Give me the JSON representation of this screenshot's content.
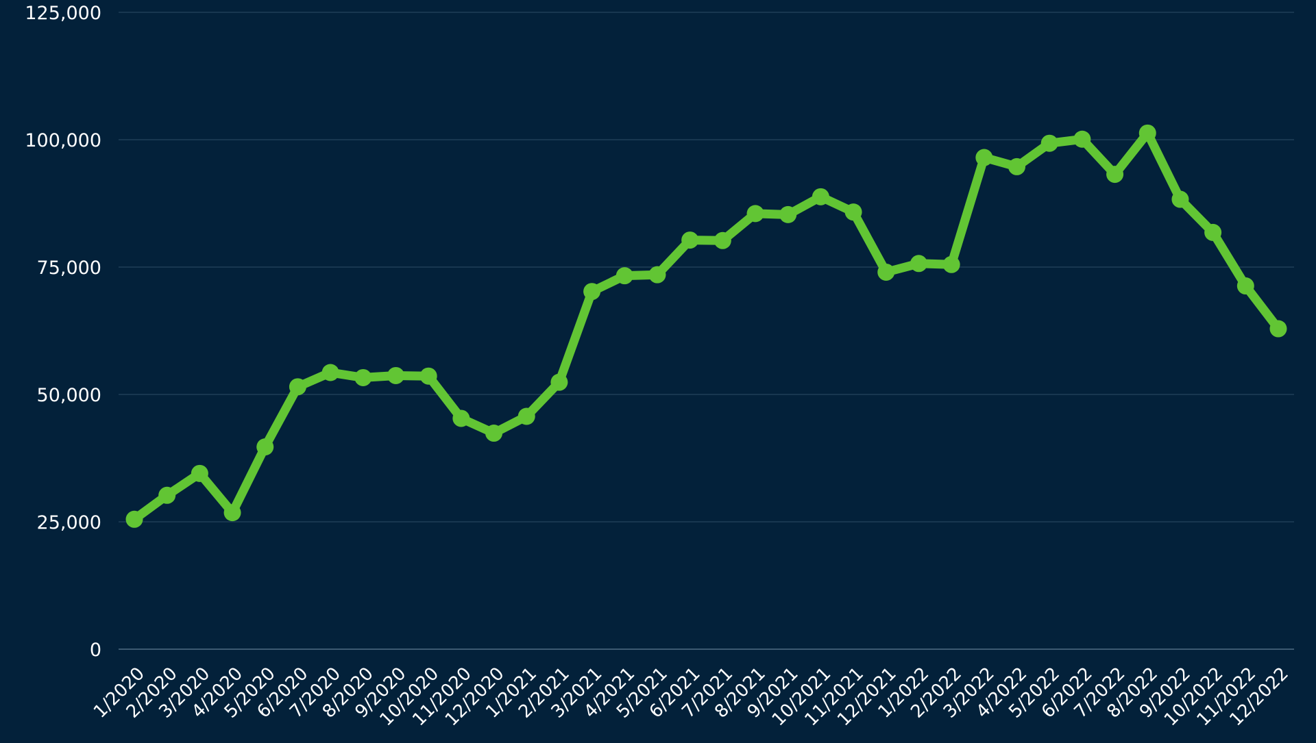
{
  "chart_data": {
    "type": "line",
    "title": "",
    "xlabel": "",
    "ylabel": "",
    "ylim": [
      0,
      125000
    ],
    "yticks": [
      0,
      25000,
      50000,
      75000,
      100000,
      125000
    ],
    "ytick_labels": [
      "0",
      "25,000",
      "50,000",
      "75,000",
      "100,000",
      "125,000"
    ],
    "grid": true,
    "legend": "none",
    "line_color": "#62c534",
    "background_color": "#03213a",
    "categories": [
      "1/2020",
      "2/2020",
      "3/2020",
      "4/2020",
      "5/2020",
      "6/2020",
      "7/2020",
      "8/2020",
      "9/2020",
      "10/2020",
      "11/2020",
      "12/2020",
      "1/2021",
      "2/2021",
      "3/2021",
      "4/2021",
      "5/2021",
      "6/2021",
      "7/2021",
      "8/2021",
      "9/2021",
      "10/2021",
      "11/2021",
      "12/2021",
      "1/2022",
      "2/2022",
      "3/2022",
      "4/2022",
      "5/2022",
      "6/2022",
      "7/2022",
      "8/2022",
      "9/2022",
      "10/2022",
      "11/2022",
      "12/2022"
    ],
    "series": [
      {
        "values": [
          25500,
          30200,
          34500,
          26800,
          39700,
          51500,
          54300,
          53300,
          53700,
          53600,
          45300,
          42400,
          45700,
          52400,
          70200,
          73300,
          73500,
          80300,
          80200,
          85500,
          85300,
          88800,
          85800,
          74000,
          75700,
          75500,
          96500,
          94700,
          99300,
          100100,
          93200,
          101300,
          88300,
          81800,
          71300,
          62900
        ]
      }
    ]
  }
}
